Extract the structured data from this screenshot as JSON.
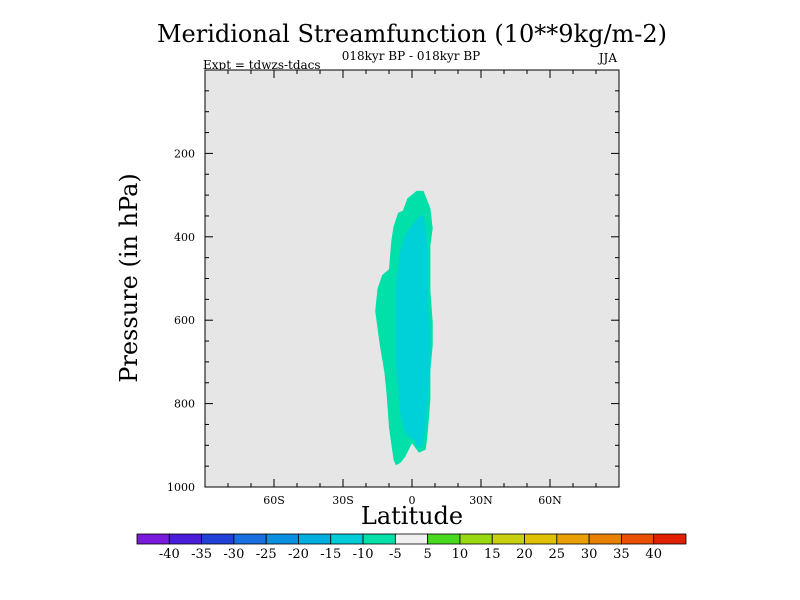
{
  "chart_data": {
    "type": "contour",
    "title": "Meridional Streamfunction (10**9kg/m-2)",
    "subtitle": "018kyr BP - 018kyr BP",
    "left_annotation": "Expt = tdwzs-tdacs",
    "right_annotation": "JJA",
    "xlabel": "Latitude",
    "ylabel": "Pressure (in hPa)",
    "xlim": [
      -90,
      90
    ],
    "ylim": [
      1000,
      0
    ],
    "x_ticks": [
      {
        "value": -60,
        "label": "60S"
      },
      {
        "value": -30,
        "label": "30S"
      },
      {
        "value": 0,
        "label": "0"
      },
      {
        "value": 30,
        "label": "30N"
      },
      {
        "value": 60,
        "label": "60N"
      }
    ],
    "y_ticks": [
      {
        "value": 200,
        "label": "200"
      },
      {
        "value": 400,
        "label": "400"
      },
      {
        "value": 600,
        "label": "600"
      },
      {
        "value": 800,
        "label": "800"
      },
      {
        "value": 1000,
        "label": "1000"
      }
    ],
    "background_color": "#e6e6e6",
    "contours": [
      {
        "name": "-10 to -5",
        "color": "#00e0a8",
        "points": [
          [
            -16,
            578
          ],
          [
            -15,
            525
          ],
          [
            -13,
            492
          ],
          [
            -10,
            478
          ],
          [
            -9,
            410
          ],
          [
            -8,
            375
          ],
          [
            -6,
            342
          ],
          [
            -4,
            338
          ],
          [
            -2,
            308
          ],
          [
            2,
            290
          ],
          [
            5,
            290
          ],
          [
            8,
            332
          ],
          [
            9,
            380
          ],
          [
            8,
            420
          ],
          [
            8,
            530
          ],
          [
            9,
            605
          ],
          [
            9,
            660
          ],
          [
            8,
            720
          ],
          [
            8,
            790
          ],
          [
            7,
            860
          ],
          [
            6,
            910
          ],
          [
            3,
            918
          ],
          [
            0,
            895
          ],
          [
            -3,
            928
          ],
          [
            -5,
            942
          ],
          [
            -7,
            948
          ],
          [
            -8,
            935
          ],
          [
            -10,
            858
          ],
          [
            -11,
            780
          ],
          [
            -12,
            725
          ],
          [
            -14,
            660
          ]
        ]
      },
      {
        "name": "-15 to -10",
        "color": "#00d0d8",
        "points": [
          [
            -7,
            520
          ],
          [
            -6,
            470
          ],
          [
            -5,
            430
          ],
          [
            -3,
            395
          ],
          [
            0,
            372
          ],
          [
            3,
            352
          ],
          [
            5,
            345
          ],
          [
            6,
            380
          ],
          [
            7,
            430
          ],
          [
            7,
            560
          ],
          [
            8,
            630
          ],
          [
            8,
            700
          ],
          [
            7,
            780
          ],
          [
            6,
            850
          ],
          [
            5,
            890
          ],
          [
            3,
            912
          ],
          [
            1,
            888
          ],
          [
            -1,
            880
          ],
          [
            -3,
            870
          ],
          [
            -5,
            828
          ],
          [
            -6,
            770
          ],
          [
            -7,
            700
          ],
          [
            -7,
            640
          ]
        ]
      }
    ],
    "colorbar": {
      "labels": [
        "-40",
        "-35",
        "-30",
        "-25",
        "-20",
        "-15",
        "-10",
        "-5",
        "5",
        "10",
        "15",
        "20",
        "25",
        "30",
        "35",
        "40"
      ],
      "colors": [
        "#7a1adc",
        "#4a1ed8",
        "#2040d8",
        "#1a6fe0",
        "#0a90e0",
        "#00aee0",
        "#00ccd8",
        "#00e0a8",
        "#f0f0f0",
        "#48d820",
        "#98d810",
        "#c8d010",
        "#e0c000",
        "#e8a000",
        "#e88000",
        "#e85000",
        "#e02000"
      ]
    }
  }
}
